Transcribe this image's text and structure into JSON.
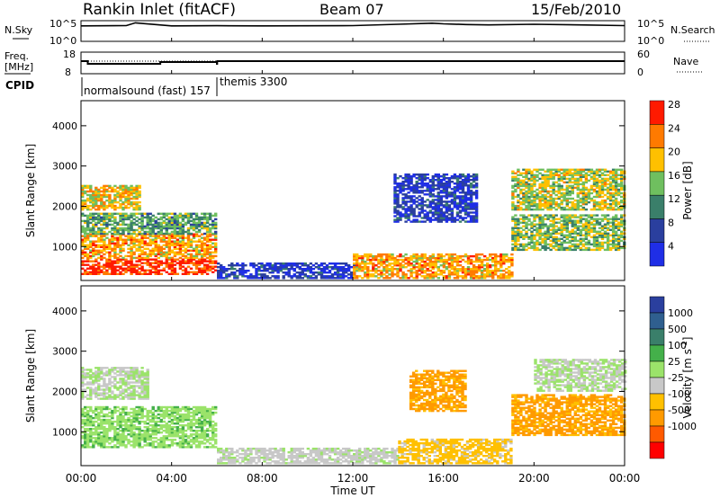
{
  "header": {
    "station": "Rankin Inlet (fitACF)",
    "beam": "Beam 07",
    "date": "15/Feb/2010"
  },
  "noise_panel": {
    "left_label": "N.Sky",
    "left_ticks": [
      "10^5",
      "10^0"
    ],
    "right_label": "N.Search",
    "right_ticks": [
      "10^5",
      "10^0"
    ]
  },
  "freq_panel": {
    "left_label_1": "Freq.",
    "left_label_2": "[MHz]",
    "left_ticks": [
      "18",
      "8"
    ],
    "right_label": "Nave",
    "right_ticks": [
      "60",
      "0"
    ]
  },
  "cpid": {
    "label": "CPID",
    "segments": [
      {
        "text": "normalsound (fast) 157"
      },
      {
        "text": "themis 3300"
      }
    ]
  },
  "x_axis": {
    "title": "Time UT",
    "ticks": [
      "00:00",
      "04:00",
      "08:00",
      "12:00",
      "16:00",
      "20:00",
      "00:00"
    ]
  },
  "range_axis": {
    "title": "Slant Range [km]",
    "ticks": [
      "1000",
      "2000",
      "3000",
      "4000"
    ]
  },
  "power_colorbar": {
    "title": "Power [dB]",
    "labels": [
      "4",
      "8",
      "12",
      "16",
      "20",
      "24",
      "28"
    ],
    "colors": [
      "#1f2ee6",
      "#2a3f9e",
      "#3a7f6a",
      "#6fbf5f",
      "#ffc000",
      "#ff7a00",
      "#ff1a00"
    ]
  },
  "velocity_colorbar": {
    "title": "Velocity [m s^-1]",
    "labels": [
      "1000",
      "500",
      "100",
      "25",
      "-25",
      "-100",
      "-500",
      "-1000"
    ],
    "colors": [
      "#2a3f9e",
      "#2f5f8f",
      "#3a7f6a",
      "#44b04a",
      "#9be36a",
      "#c8c8c8",
      "#ffc000",
      "#ff9a00",
      "#ff5a00",
      "#ff0000"
    ]
  },
  "chart_data": [
    {
      "type": "line",
      "title": "Noise",
      "xlabel": "Time UT",
      "ylabel": "N.Sky",
      "xlim": [
        0,
        24
      ],
      "series": [
        {
          "x": [
            0,
            2,
            2.4,
            4,
            6,
            8,
            12,
            14,
            15.5,
            16,
            17,
            18,
            20,
            22,
            24
          ],
          "values": [
            10000,
            12000,
            80000,
            10000,
            11000,
            10000,
            12000,
            30000,
            60000,
            40000,
            25000,
            20000,
            30000,
            20000,
            12000
          ]
        }
      ]
    },
    {
      "type": "line",
      "title": "Frequency",
      "xlabel": "Time UT",
      "ylabel": "Freq. [MHz]",
      "ylim": [
        8,
        18
      ],
      "xlim": [
        0,
        24
      ],
      "series": [
        {
          "x": [
            0,
            0.3,
            2.6,
            3.5,
            6,
            6.01,
            24
          ],
          "values": [
            14,
            12.5,
            12.5,
            13.5,
            12.5,
            14,
            14
          ]
        }
      ]
    },
    {
      "type": "heatmap",
      "title": "Power [dB]",
      "xlabel": "Time UT",
      "ylabel": "Slant Range [km]",
      "xlim": [
        0,
        24
      ],
      "ylim": [
        180,
        4600
      ],
      "bands": [
        {
          "t0": 0.0,
          "t1": 6.0,
          "r0": 300,
          "r1": 700,
          "power": 28
        },
        {
          "t0": 0.0,
          "t1": 6.0,
          "r0": 700,
          "r1": 1300,
          "power": 22
        },
        {
          "t0": 0.0,
          "t1": 6.0,
          "r0": 1300,
          "r1": 1800,
          "power": 14
        },
        {
          "t0": 0.0,
          "t1": 2.6,
          "r0": 1900,
          "r1": 2500,
          "power": 20
        },
        {
          "t0": 6.0,
          "t1": 12.0,
          "r0": 200,
          "r1": 600,
          "power": 6
        },
        {
          "t0": 12.0,
          "t1": 19.0,
          "r0": 200,
          "r1": 800,
          "power": 22
        },
        {
          "t0": 13.8,
          "t1": 17.5,
          "r0": 1600,
          "r1": 2800,
          "power": 6
        },
        {
          "t0": 19.0,
          "t1": 24.0,
          "r0": 900,
          "r1": 1800,
          "power": 16
        },
        {
          "t0": 19.0,
          "t1": 24.0,
          "r0": 1900,
          "r1": 2900,
          "power": 18
        }
      ]
    },
    {
      "type": "heatmap",
      "title": "Velocity [m s^-1]",
      "xlabel": "Time UT",
      "ylabel": "Slant Range [km]",
      "xlim": [
        0,
        24
      ],
      "ylim": [
        180,
        4600
      ],
      "bands": [
        {
          "t0": 0.0,
          "t1": 6.0,
          "r0": 600,
          "r1": 1600,
          "velocity": 150
        },
        {
          "t0": 0.0,
          "t1": 3.0,
          "r0": 1800,
          "r1": 2600,
          "velocity": 0
        },
        {
          "t0": 6.0,
          "t1": 14.0,
          "r0": 200,
          "r1": 600,
          "velocity": -80
        },
        {
          "t0": 14.0,
          "t1": 19.0,
          "r0": 200,
          "r1": 800,
          "velocity": -300
        },
        {
          "t0": 14.5,
          "t1": 17.0,
          "r0": 1500,
          "r1": 2500,
          "velocity": -500
        },
        {
          "t0": 19.0,
          "t1": 24.0,
          "r0": 900,
          "r1": 1900,
          "velocity": -500
        },
        {
          "t0": 20.0,
          "t1": 24.0,
          "r0": 2000,
          "r1": 2800,
          "velocity": 0
        }
      ]
    }
  ]
}
